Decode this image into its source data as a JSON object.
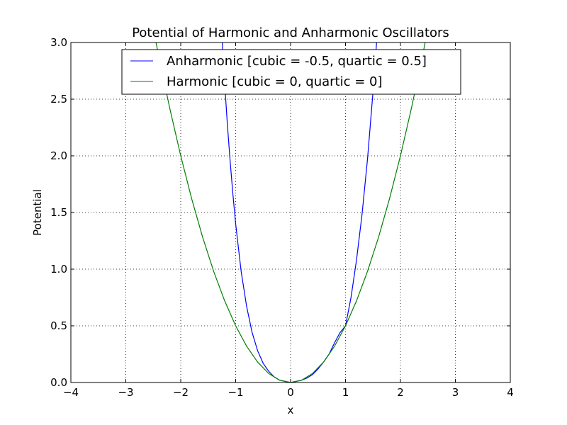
{
  "chart_data": {
    "type": "line",
    "title": "Potential of Harmonic and Anharmonic Oscillators",
    "xlabel": "x",
    "ylabel": "Potential",
    "xlim": [
      -4,
      4
    ],
    "ylim": [
      0,
      3
    ],
    "x_ticks": [
      -4,
      -3,
      -2,
      -1,
      0,
      1,
      2,
      3,
      4
    ],
    "x_tick_labels": [
      "−4",
      "−3",
      "−2",
      "−1",
      "0",
      "1",
      "2",
      "3",
      "4"
    ],
    "y_ticks": [
      0,
      0.5,
      1,
      1.5,
      2,
      2.5,
      3
    ],
    "y_tick_labels": [
      "0.0",
      "0.5",
      "1.0",
      "1.5",
      "2.0",
      "2.5",
      "3.0"
    ],
    "grid": true,
    "legend_position": "top-center",
    "series": [
      {
        "name": "Anharmonic [cubic = -0.5, quartic = 0.5]",
        "color": "#0000ff",
        "x": [
          -1.25,
          -1.2,
          -1.15,
          -1.1,
          -1.05,
          -1.0,
          -0.9,
          -0.8,
          -0.7,
          -0.6,
          -0.5,
          -0.4,
          -0.3,
          -0.2,
          -0.1,
          0.0,
          0.1,
          0.2,
          0.3,
          0.4,
          0.5,
          0.6,
          0.7,
          0.8,
          0.9,
          1.0,
          1.1,
          1.2,
          1.3,
          1.4,
          1.5,
          1.6,
          1.65
        ],
        "y": [
          3.05,
          2.64,
          2.27,
          1.95,
          1.66,
          1.4,
          0.98,
          0.67,
          0.44,
          0.28,
          0.17,
          0.1,
          0.05,
          0.02,
          0.01,
          0.0,
          0.01,
          0.02,
          0.04,
          0.07,
          0.12,
          0.18,
          0.25,
          0.35,
          0.44,
          0.5,
          0.75,
          1.08,
          1.48,
          1.97,
          2.56,
          3.23,
          3.62
        ]
      },
      {
        "name": "Harmonic [cubic = 0, quartic = 0]",
        "color": "#008000",
        "x": [
          -2.45,
          -2.4,
          -2.2,
          -2.0,
          -1.8,
          -1.6,
          -1.4,
          -1.2,
          -1.0,
          -0.8,
          -0.6,
          -0.4,
          -0.2,
          0.0,
          0.2,
          0.4,
          0.6,
          0.8,
          1.0,
          1.2,
          1.4,
          1.6,
          1.8,
          2.0,
          2.2,
          2.4,
          2.45
        ],
        "y": [
          3.0,
          2.88,
          2.42,
          2.0,
          1.62,
          1.28,
          0.98,
          0.72,
          0.5,
          0.32,
          0.18,
          0.08,
          0.02,
          0.0,
          0.02,
          0.08,
          0.18,
          0.32,
          0.5,
          0.72,
          0.98,
          1.28,
          1.62,
          2.0,
          2.42,
          2.88,
          3.0
        ]
      }
    ]
  }
}
